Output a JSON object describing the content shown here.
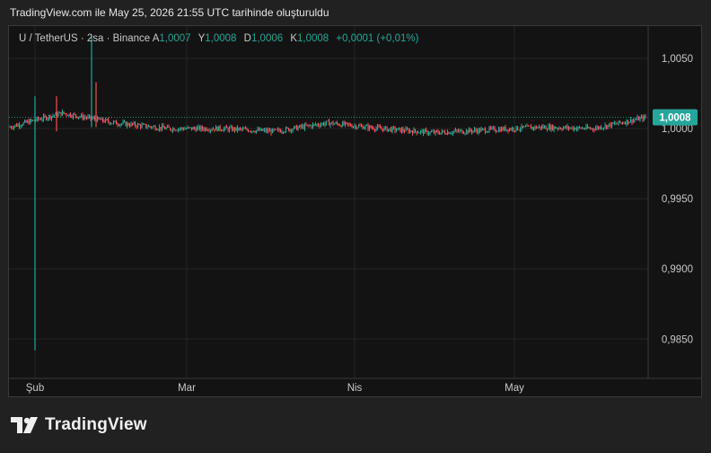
{
  "caption": "TradingView.com ile May 25, 2026 21:55 UTC tarihinde oluşturuldu",
  "legend": {
    "symbol": "U / TetherUS · 2sa · Binance",
    "open_label": "A",
    "open_value": "1,0007",
    "high_label": "Y",
    "high_value": "1,0008",
    "low_label": "D",
    "low_value": "1,0006",
    "close_label": "K",
    "close_value": "1,0008",
    "change": "+0,0001 (+0,01%)"
  },
  "logo_text": "TradingView",
  "colors": {
    "up": "#26a69a",
    "down": "#ef5350",
    "background": "#131313",
    "grid": "#262626",
    "price_tag": "#26a69a"
  },
  "chart_data": {
    "type": "candlestick",
    "interval": "2h",
    "x_tick_labels": [
      "Şub",
      "Mar",
      "Nis",
      "May"
    ],
    "y_tick_labels": [
      "1,0050",
      "1,0000",
      "0,9950",
      "0,9900",
      "0,9850"
    ],
    "y_ticks": [
      1.005,
      1.0,
      0.995,
      0.99,
      0.985
    ],
    "ylim": [
      0.9822,
      1.0073
    ],
    "last_price": 1.0008,
    "last_price_label": "1,0008",
    "grid": true,
    "spikes": [
      {
        "period": "Feb 1",
        "low": 0.9842,
        "high": 1.0023
      },
      {
        "period": "Feb 3",
        "low": 0.9998,
        "high": 1.0023
      },
      {
        "period": "Feb 8",
        "low": 1.0001,
        "high": 1.0067
      },
      {
        "period": "Feb 9",
        "low": 1.0001,
        "high": 1.0033
      }
    ],
    "segments": [
      {
        "period": "late Jan",
        "level": 1.0001
      },
      {
        "period": "early Feb",
        "level": 1.0011
      },
      {
        "period": "mid Feb",
        "level": 1.0004
      },
      {
        "period": "late Feb",
        "level": 1.0
      },
      {
        "period": "early Mar",
        "level": 1.0
      },
      {
        "period": "mid Mar",
        "level": 0.9998
      },
      {
        "period": "late Mar",
        "level": 1.0004
      },
      {
        "period": "early Apr",
        "level": 1.0
      },
      {
        "period": "mid Apr",
        "level": 0.9997
      },
      {
        "period": "late Apr",
        "level": 0.9999
      },
      {
        "period": "early May",
        "level": 1.0001
      },
      {
        "period": "mid May",
        "level": 1.0
      },
      {
        "period": "late May",
        "level": 1.0008
      }
    ]
  }
}
